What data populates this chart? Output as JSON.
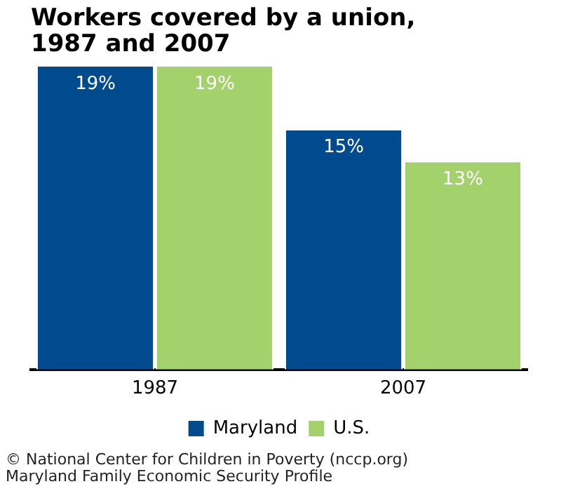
{
  "chart_data": {
    "type": "bar",
    "title": [
      "Workers covered by a union,",
      "1987 and 2007"
    ],
    "categories": [
      "1987",
      "2007"
    ],
    "series": [
      {
        "name": "Maryland",
        "color": "#004b8d",
        "values": [
          19,
          15
        ],
        "value_labels": [
          "19%",
          "15%"
        ]
      },
      {
        "name": "U.S.",
        "color": "#a3d16b",
        "values": [
          19,
          13
        ],
        "value_labels": [
          "19%",
          "13%"
        ]
      }
    ],
    "ylim": [
      0,
      19
    ],
    "tick_labels": "x",
    "grid": false,
    "legend": "bottom",
    "annotations": [
      "© National Center for Children in Poverty (nccp.org)",
      "Maryland Family Economic Security Profile"
    ]
  }
}
